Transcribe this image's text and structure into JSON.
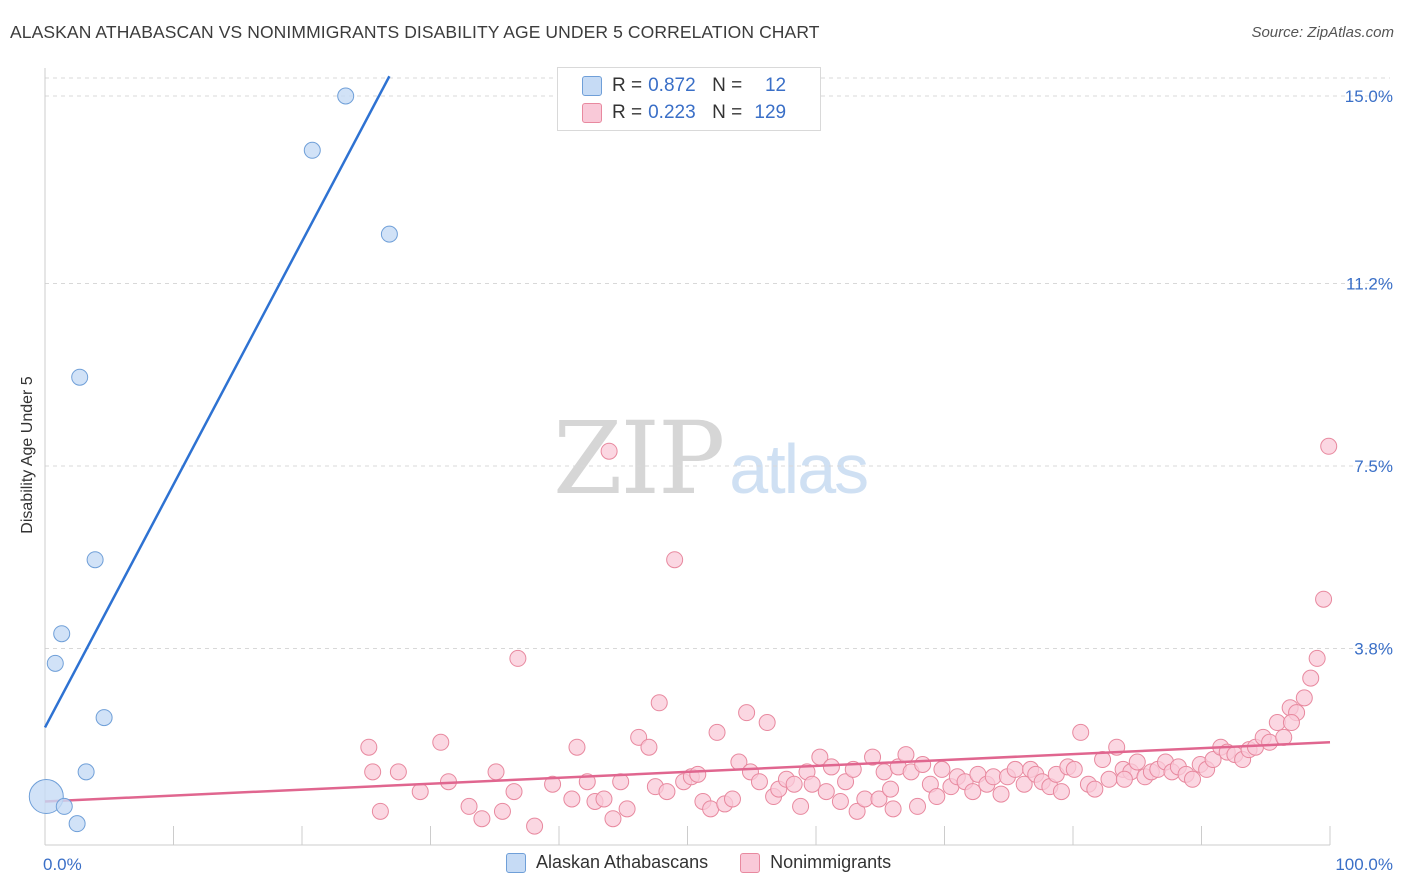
{
  "title": "ALASKAN ATHABASCAN VS NONIMMIGRANTS DISABILITY AGE UNDER 5 CORRELATION CHART",
  "source": "Source: ZipAtlas.com",
  "watermark": {
    "zip": "ZIP",
    "atlas": "atlas"
  },
  "colors": {
    "blue_fill": "#c6dbf5",
    "blue_stroke": "#6f9fd8",
    "blue_line": "#2e72d2",
    "pink_fill": "#f9c9d8",
    "pink_stroke": "#e8899f",
    "pink_line": "#e0668f",
    "axis_label": "#3a6fc7",
    "grid": "#d8d8d8"
  },
  "legend": {
    "rows": [
      {
        "r_label": "R =",
        "r_value": "0.872",
        "n_label": "N =",
        "n_value": "12"
      },
      {
        "r_label": "R =",
        "r_value": "0.223",
        "n_label": "N =",
        "n_value": "129"
      }
    ]
  },
  "bottom_legend": [
    "Alaskan Athabascans",
    "Nonimmigrants"
  ],
  "chart_data": {
    "type": "scatter",
    "title": "ALASKAN ATHABASCAN VS NONIMMIGRANTS DISABILITY AGE UNDER 5 CORRELATION CHART",
    "xlabel": "",
    "ylabel": "Disability Age Under 5",
    "xlim": [
      0,
      100
    ],
    "ylim": [
      0,
      15.0
    ],
    "x_tick_labels": [
      "0.0%",
      "100.0%"
    ],
    "y_ticks": [
      3.8,
      7.5,
      11.2,
      15.0
    ],
    "y_tick_labels": [
      "3.8%",
      "7.5%",
      "11.2%",
      "15.0%"
    ],
    "grid": true,
    "series": [
      {
        "name": "Alaskan Athabascans",
        "color": "#6f9fd8",
        "trend": {
          "x0": 0,
          "y0": 2.2,
          "x1": 26.8,
          "y1": 15.4
        },
        "points": [
          {
            "x": 0.1,
            "y": 0.8,
            "big": true
          },
          {
            "x": 1.5,
            "y": 0.6
          },
          {
            "x": 2.5,
            "y": 0.25
          },
          {
            "x": 3.2,
            "y": 1.3
          },
          {
            "x": 0.8,
            "y": 3.5
          },
          {
            "x": 1.3,
            "y": 4.1
          },
          {
            "x": 3.9,
            "y": 5.6
          },
          {
            "x": 4.6,
            "y": 2.4
          },
          {
            "x": 2.7,
            "y": 9.3
          },
          {
            "x": 20.8,
            "y": 13.9
          },
          {
            "x": 26.8,
            "y": 12.2
          },
          {
            "x": 23.4,
            "y": 15.0
          }
        ]
      },
      {
        "name": "Nonimmigrants",
        "color": "#e8899f",
        "trend": {
          "x0": 0,
          "y0": 0.7,
          "x1": 100,
          "y1": 1.9
        },
        "points": [
          {
            "x": 25.2,
            "y": 1.8
          },
          {
            "x": 25.5,
            "y": 1.3
          },
          {
            "x": 26.1,
            "y": 0.5
          },
          {
            "x": 27.5,
            "y": 1.3
          },
          {
            "x": 29.2,
            "y": 0.9
          },
          {
            "x": 30.8,
            "y": 1.9
          },
          {
            "x": 31.4,
            "y": 1.1
          },
          {
            "x": 33.0,
            "y": 0.6
          },
          {
            "x": 34.0,
            "y": 0.35
          },
          {
            "x": 35.1,
            "y": 1.3
          },
          {
            "x": 35.6,
            "y": 0.5
          },
          {
            "x": 36.5,
            "y": 0.9
          },
          {
            "x": 36.8,
            "y": 3.6
          },
          {
            "x": 38.1,
            "y": 0.2
          },
          {
            "x": 39.5,
            "y": 1.05
          },
          {
            "x": 41.0,
            "y": 0.75
          },
          {
            "x": 41.4,
            "y": 1.8
          },
          {
            "x": 42.2,
            "y": 1.1
          },
          {
            "x": 42.8,
            "y": 0.7
          },
          {
            "x": 43.5,
            "y": 0.75
          },
          {
            "x": 43.9,
            "y": 7.8
          },
          {
            "x": 44.2,
            "y": 0.35
          },
          {
            "x": 44.8,
            "y": 1.1
          },
          {
            "x": 45.3,
            "y": 0.55
          },
          {
            "x": 46.2,
            "y": 2.0
          },
          {
            "x": 47.0,
            "y": 1.8
          },
          {
            "x": 47.5,
            "y": 1.0
          },
          {
            "x": 47.8,
            "y": 2.7
          },
          {
            "x": 48.4,
            "y": 0.9
          },
          {
            "x": 49.0,
            "y": 5.6
          },
          {
            "x": 49.7,
            "y": 1.1
          },
          {
            "x": 50.3,
            "y": 1.2
          },
          {
            "x": 50.8,
            "y": 1.25
          },
          {
            "x": 51.2,
            "y": 0.7
          },
          {
            "x": 51.8,
            "y": 0.55
          },
          {
            "x": 52.3,
            "y": 2.1
          },
          {
            "x": 52.9,
            "y": 0.65
          },
          {
            "x": 53.5,
            "y": 0.75
          },
          {
            "x": 54.0,
            "y": 1.5
          },
          {
            "x": 54.6,
            "y": 2.5
          },
          {
            "x": 54.9,
            "y": 1.3
          },
          {
            "x": 55.6,
            "y": 1.1
          },
          {
            "x": 56.2,
            "y": 2.3
          },
          {
            "x": 56.7,
            "y": 0.8
          },
          {
            "x": 57.1,
            "y": 0.95
          },
          {
            "x": 57.7,
            "y": 1.15
          },
          {
            "x": 58.3,
            "y": 1.05
          },
          {
            "x": 58.8,
            "y": 0.6
          },
          {
            "x": 59.3,
            "y": 1.3
          },
          {
            "x": 59.7,
            "y": 1.05
          },
          {
            "x": 60.3,
            "y": 1.6
          },
          {
            "x": 60.8,
            "y": 0.9
          },
          {
            "x": 61.2,
            "y": 1.4
          },
          {
            "x": 61.9,
            "y": 0.7
          },
          {
            "x": 62.3,
            "y": 1.1
          },
          {
            "x": 62.9,
            "y": 1.35
          },
          {
            "x": 63.2,
            "y": 0.5
          },
          {
            "x": 63.8,
            "y": 0.75
          },
          {
            "x": 64.4,
            "y": 1.6
          },
          {
            "x": 64.9,
            "y": 0.75
          },
          {
            "x": 65.3,
            "y": 1.3
          },
          {
            "x": 65.8,
            "y": 0.95
          },
          {
            "x": 66.4,
            "y": 1.4
          },
          {
            "x": 67.0,
            "y": 1.65
          },
          {
            "x": 67.4,
            "y": 1.3
          },
          {
            "x": 67.9,
            "y": 0.6
          },
          {
            "x": 68.3,
            "y": 1.45
          },
          {
            "x": 68.9,
            "y": 1.05
          },
          {
            "x": 69.4,
            "y": 0.8
          },
          {
            "x": 69.8,
            "y": 1.35
          },
          {
            "x": 70.5,
            "y": 1.0
          },
          {
            "x": 71.0,
            "y": 1.2
          },
          {
            "x": 71.6,
            "y": 1.1
          },
          {
            "x": 72.2,
            "y": 0.9
          },
          {
            "x": 72.6,
            "y": 1.25
          },
          {
            "x": 73.3,
            "y": 1.05
          },
          {
            "x": 73.8,
            "y": 1.2
          },
          {
            "x": 74.4,
            "y": 0.85
          },
          {
            "x": 74.9,
            "y": 1.2
          },
          {
            "x": 75.5,
            "y": 1.35
          },
          {
            "x": 76.2,
            "y": 1.05
          },
          {
            "x": 76.7,
            "y": 1.35
          },
          {
            "x": 77.1,
            "y": 1.25
          },
          {
            "x": 77.6,
            "y": 1.1
          },
          {
            "x": 78.2,
            "y": 1.0
          },
          {
            "x": 78.7,
            "y": 1.25
          },
          {
            "x": 79.1,
            "y": 0.9
          },
          {
            "x": 79.6,
            "y": 1.4
          },
          {
            "x": 80.1,
            "y": 1.35
          },
          {
            "x": 80.6,
            "y": 2.1
          },
          {
            "x": 81.2,
            "y": 1.05
          },
          {
            "x": 81.7,
            "y": 0.95
          },
          {
            "x": 82.3,
            "y": 1.55
          },
          {
            "x": 82.8,
            "y": 1.15
          },
          {
            "x": 83.4,
            "y": 1.8
          },
          {
            "x": 83.9,
            "y": 1.35
          },
          {
            "x": 84.5,
            "y": 1.3
          },
          {
            "x": 85.0,
            "y": 1.5
          },
          {
            "x": 85.6,
            "y": 1.2
          },
          {
            "x": 86.1,
            "y": 1.3
          },
          {
            "x": 86.6,
            "y": 1.35
          },
          {
            "x": 87.2,
            "y": 1.5
          },
          {
            "x": 87.7,
            "y": 1.3
          },
          {
            "x": 88.2,
            "y": 1.4
          },
          {
            "x": 88.8,
            "y": 1.25
          },
          {
            "x": 89.3,
            "y": 1.15
          },
          {
            "x": 89.9,
            "y": 1.45
          },
          {
            "x": 90.4,
            "y": 1.35
          },
          {
            "x": 90.9,
            "y": 1.55
          },
          {
            "x": 91.5,
            "y": 1.8
          },
          {
            "x": 92.0,
            "y": 1.7
          },
          {
            "x": 92.6,
            "y": 1.65
          },
          {
            "x": 93.2,
            "y": 1.55
          },
          {
            "x": 93.7,
            "y": 1.75
          },
          {
            "x": 94.2,
            "y": 1.8
          },
          {
            "x": 94.8,
            "y": 2.0
          },
          {
            "x": 95.3,
            "y": 1.9
          },
          {
            "x": 95.9,
            "y": 2.3
          },
          {
            "x": 96.4,
            "y": 2.0
          },
          {
            "x": 96.9,
            "y": 2.6
          },
          {
            "x": 97.4,
            "y": 2.5
          },
          {
            "x": 98.0,
            "y": 2.8
          },
          {
            "x": 98.5,
            "y": 3.2
          },
          {
            "x": 99.0,
            "y": 3.6
          },
          {
            "x": 99.5,
            "y": 4.8
          },
          {
            "x": 99.9,
            "y": 7.9
          },
          {
            "x": 97.0,
            "y": 2.3
          },
          {
            "x": 84.0,
            "y": 1.15
          },
          {
            "x": 66.0,
            "y": 0.55
          }
        ]
      }
    ]
  }
}
